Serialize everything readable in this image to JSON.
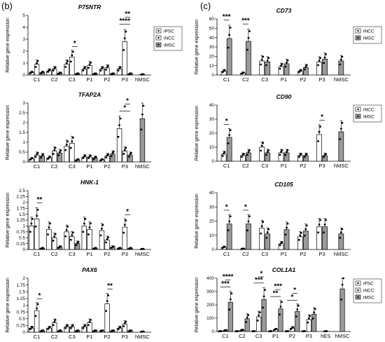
{
  "figure": {
    "panel_labels": [
      "(b)",
      "(c)"
    ],
    "legend_b": [
      "iPSC",
      "iNCC",
      "iMSC"
    ],
    "legend_c": [
      "iNCC",
      "iMSC"
    ],
    "legend_col1a1": [
      "iPSC",
      "iNCC",
      "iMSC"
    ],
    "colors": {
      "iPSC": "#ffffff",
      "iNCC": "#ffffff",
      "iMSC": "#9a9a9a",
      "stroke": "#000000"
    }
  },
  "chart_data": [
    {
      "id": "p75ntr",
      "type": "bar",
      "title": "P75NTR",
      "ylabel": "Relative gene expression",
      "ylim": [
        0,
        5
      ],
      "yticks": [
        0,
        1,
        2,
        3,
        4,
        5
      ],
      "categories": [
        "C1",
        "C2",
        "C3",
        "P1",
        "P2",
        "P3",
        "hMSC"
      ],
      "series": [
        {
          "name": "iPSC",
          "values": [
            0.2,
            0.35,
            0.9,
            0.5,
            0.5,
            0.5,
            null
          ]
        },
        {
          "name": "iNCC",
          "values": [
            0.9,
            0.5,
            1.5,
            0.8,
            0.6,
            2.8,
            null
          ]
        },
        {
          "name": "iMSC",
          "values": [
            0.2,
            0.15,
            0.1,
            0.1,
            0.1,
            0.1,
            0.05
          ]
        }
      ],
      "significance": [
        {
          "label": "*",
          "category": "C3",
          "pair": [
            1,
            2
          ]
        },
        {
          "label": "****",
          "category": "P3",
          "pair": [
            0,
            2
          ]
        },
        {
          "label": "**",
          "category": "P3",
          "pair": [
            1,
            2
          ]
        }
      ]
    },
    {
      "id": "tfap2a",
      "type": "bar",
      "title": "TFAP2A",
      "ylabel": "Relative gene expression",
      "ylim": [
        0,
        3
      ],
      "yticks": [
        0,
        0.5,
        1,
        1.5,
        2,
        2.5,
        3
      ],
      "categories": [
        "C1",
        "C2",
        "C3",
        "P1",
        "P2",
        "P3",
        "hMSC"
      ],
      "series": [
        {
          "name": "iPSC",
          "values": [
            0.15,
            0.2,
            0.8,
            0.25,
            0.1,
            1.7,
            null
          ]
        },
        {
          "name": "iNCC",
          "values": [
            0.35,
            0.55,
            0.95,
            0.25,
            0.3,
            0.55,
            null
          ]
        },
        {
          "name": "iMSC",
          "values": [
            0.3,
            0.45,
            0.1,
            0.2,
            0.4,
            0.35,
            2.2
          ]
        }
      ],
      "significance": [
        {
          "label": "*",
          "category": "P3",
          "pair": [
            0,
            2
          ]
        },
        {
          "label": "*",
          "category": "P3",
          "pair": [
            1,
            2
          ]
        }
      ]
    },
    {
      "id": "hnk1",
      "type": "bar",
      "title": "HNK-1",
      "ylabel": "Relative gene expression",
      "ylim": [
        0,
        2.5
      ],
      "yticks": [
        0,
        0.25,
        0.5,
        0.75,
        1,
        1.25,
        1.5,
        1.75,
        2,
        2.25,
        2.5
      ],
      "categories": [
        "C1",
        "C2",
        "C3",
        "P1",
        "P2",
        "P3",
        "hMSC"
      ],
      "series": [
        {
          "name": "iPSC",
          "values": [
            1.0,
            0.85,
            0.75,
            1.0,
            0.8,
            0.05,
            null
          ]
        },
        {
          "name": "iNCC",
          "values": [
            1.3,
            0.5,
            0.55,
            0.85,
            0.4,
            0.95,
            null
          ]
        },
        {
          "name": "iMSC",
          "values": [
            0.05,
            0.1,
            0.25,
            0.05,
            0.1,
            0.05,
            0.02
          ]
        }
      ],
      "significance": [
        {
          "label": "**",
          "category": "C1",
          "pair": [
            1,
            2
          ]
        },
        {
          "label": "*",
          "category": "P3",
          "pair": [
            1,
            2
          ]
        }
      ]
    },
    {
      "id": "pax6",
      "type": "bar",
      "title": "PAX6",
      "ylabel": "Relative gene expression",
      "ylim": [
        0,
        2
      ],
      "yticks": [
        0,
        0.25,
        0.5,
        0.75,
        1,
        1.25,
        1.5,
        1.75,
        2
      ],
      "categories": [
        "C1",
        "C2",
        "C3",
        "P1",
        "P2",
        "P3",
        "hMSC"
      ],
      "series": [
        {
          "name": "iPSC",
          "values": [
            0.15,
            0.15,
            0.2,
            0.2,
            0.05,
            0.15,
            null
          ]
        },
        {
          "name": "iNCC",
          "values": [
            0.8,
            0.35,
            0.2,
            0.35,
            1.05,
            0.3,
            null
          ]
        },
        {
          "name": "iMSC",
          "values": [
            0.05,
            0.05,
            0.05,
            0.05,
            0.05,
            0.05,
            0.02
          ]
        }
      ],
      "significance": [
        {
          "label": "*",
          "category": "C1",
          "pair": [
            1,
            2
          ]
        },
        {
          "label": "**",
          "category": "P2",
          "pair": [
            1,
            2
          ]
        }
      ]
    },
    {
      "id": "cd73",
      "type": "bar",
      "title": "CD73",
      "ylabel": "Relative gene expression",
      "ylim": [
        0,
        60
      ],
      "yticks": [
        0,
        10,
        20,
        30,
        40,
        50,
        60
      ],
      "categories": [
        "C1",
        "C2",
        "C3",
        "P1",
        "P2",
        "P3",
        "hMSC"
      ],
      "series": [
        {
          "name": "iNCC",
          "values": [
            4,
            2,
            15,
            9,
            4,
            14,
            null
          ]
        },
        {
          "name": "iMSC",
          "values": [
            39,
            36,
            14,
            12,
            8,
            17,
            15
          ]
        }
      ],
      "significance": [
        {
          "label": "***",
          "category": "C1",
          "pair": [
            0,
            1
          ]
        },
        {
          "label": "***",
          "category": "C2",
          "pair": [
            0,
            1
          ]
        }
      ]
    },
    {
      "id": "cd90",
      "type": "bar",
      "title": "CD90",
      "ylabel": "Relative gene expression",
      "ylim": [
        0,
        40
      ],
      "yticks": [
        0,
        10,
        20,
        30,
        40
      ],
      "categories": [
        "C1",
        "C2",
        "C3",
        "P1",
        "P2",
        "P3",
        "hMSC"
      ],
      "series": [
        {
          "name": "iNCC",
          "values": [
            5,
            4,
            10,
            6,
            4,
            19,
            null
          ]
        },
        {
          "name": "iMSC",
          "values": [
            17,
            6,
            6,
            6,
            4,
            4,
            21
          ]
        }
      ],
      "significance": [
        {
          "label": "*",
          "category": "C1",
          "pair": [
            0,
            1
          ]
        },
        {
          "label": "*",
          "category": "P3",
          "pair": [
            0,
            1
          ]
        }
      ]
    },
    {
      "id": "cd105",
      "type": "bar",
      "title": "CD105",
      "ylabel": "Relative gene expression",
      "ylim": [
        0,
        40
      ],
      "yticks": [
        0,
        10,
        20,
        30,
        40
      ],
      "categories": [
        "C1",
        "C2",
        "C3",
        "P1",
        "P2",
        "P3",
        "hMSC"
      ],
      "series": [
        {
          "name": "iNCC",
          "values": [
            1.5,
            0.5,
            15,
            4,
            9,
            16,
            null
          ]
        },
        {
          "name": "iMSC",
          "values": [
            18,
            18,
            11,
            14,
            13,
            16,
            11
          ]
        }
      ],
      "significance": [
        {
          "label": "*",
          "category": "C1",
          "pair": [
            0,
            1
          ]
        },
        {
          "label": "*",
          "category": "C2",
          "pair": [
            0,
            1
          ]
        }
      ]
    },
    {
      "id": "col1a1",
      "type": "bar",
      "title": "COL1A1",
      "ylabel": "Relative gene expression",
      "ylim": [
        0,
        400
      ],
      "yticks": [
        0,
        100,
        200,
        300,
        400
      ],
      "categories": [
        "C1",
        "C2",
        "C3",
        "P1",
        "P2",
        "P3",
        "hES",
        "hMSC"
      ],
      "series": [
        {
          "name": "iPSC",
          "values": [
            2,
            2,
            2,
            2,
            2,
            2,
            2,
            null
          ]
        },
        {
          "name": "iNCC",
          "values": [
            8,
            10,
            110,
            15,
            25,
            90,
            null,
            null
          ]
        },
        {
          "name": "iMSC",
          "values": [
            220,
            95,
            240,
            170,
            150,
            130,
            null,
            320
          ]
        }
      ],
      "significance": [
        {
          "label": "***",
          "category": "C1",
          "pair": [
            0,
            2
          ]
        },
        {
          "label": "****",
          "category": "C1",
          "pair": [
            1,
            2
          ]
        },
        {
          "label": "***",
          "category": "C3",
          "pair": [
            0,
            2
          ]
        },
        {
          "label": "*",
          "category": "C3",
          "pair": [
            1,
            2
          ]
        },
        {
          "label": "**",
          "category": "P1",
          "pair": [
            0,
            2
          ]
        },
        {
          "label": "***",
          "category": "P1",
          "pair": [
            1,
            2
          ]
        },
        {
          "label": "*",
          "category": "P2",
          "pair": [
            0,
            2
          ]
        },
        {
          "label": "*",
          "category": "P2",
          "pair": [
            1,
            2
          ]
        }
      ]
    }
  ]
}
